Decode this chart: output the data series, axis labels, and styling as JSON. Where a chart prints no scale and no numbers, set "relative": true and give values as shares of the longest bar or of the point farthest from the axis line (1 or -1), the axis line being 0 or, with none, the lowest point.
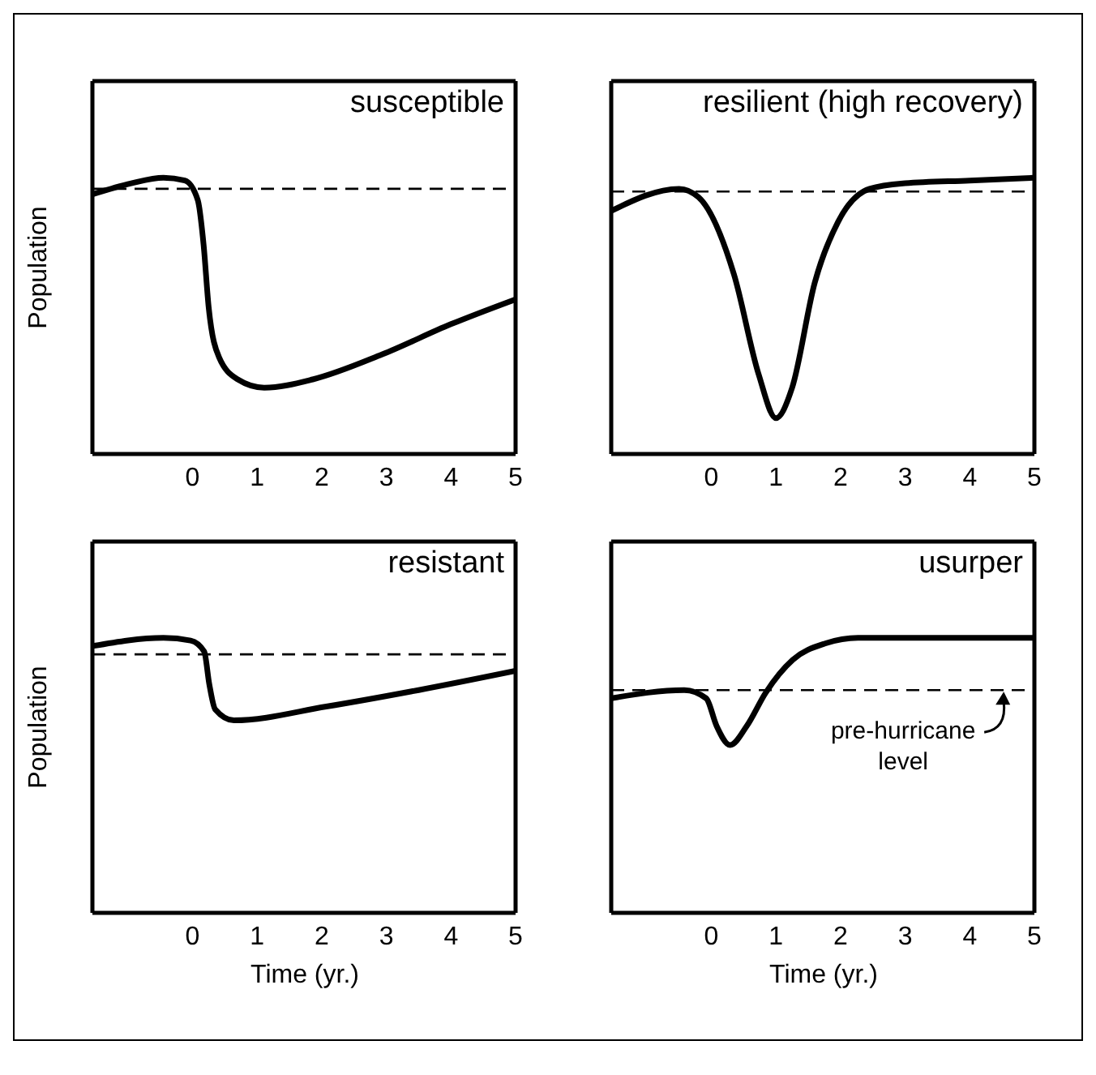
{
  "chart_data": [
    {
      "type": "line",
      "title": "susceptible",
      "ylabel": "Population",
      "relative": true,
      "xlim": [
        -1.55,
        5
      ],
      "xticks": [
        0,
        1,
        2,
        3,
        4,
        5
      ],
      "series": [
        {
          "color": "#000000",
          "x": [
            -1.55,
            -0.95,
            -0.45,
            -0.12,
            0.08,
            0.17,
            0.25,
            0.41,
            0.7,
            1.11,
            1.86,
            2.93,
            4.0,
            5.0
          ],
          "values": [
            0.94,
            0.98,
            1,
            0.99,
            0.92,
            0.76,
            0.53,
            0.35,
            0.27,
            0.24,
            0.27,
            0.36,
            0.47,
            0.56
          ]
        }
      ],
      "ref_lines": [
        {
          "axis": "y",
          "value": 0.96,
          "color": "#000000",
          "line_style": "dashed"
        }
      ]
    },
    {
      "type": "line",
      "title": "resilient (high recovery)",
      "relative": true,
      "xlim": [
        -1.55,
        5
      ],
      "xticks": [
        0,
        1,
        2,
        3,
        4,
        5
      ],
      "series": [
        {
          "color": "#000000",
          "x": [
            -1.55,
            -0.5,
            -0.2,
            0.35,
            0.73,
            1.0,
            1.25,
            1.6,
            1.96,
            2.45,
            3.0,
            4.0,
            5.0
          ],
          "values": [
            0.88,
            0.96,
            0.93,
            0.65,
            0.29,
            0.13,
            0.24,
            0.62,
            0.84,
            0.96,
            0.98,
            0.99,
            1
          ]
        }
      ],
      "ref_lines": [
        {
          "axis": "y",
          "value": 0.95,
          "color": "#000000",
          "line_style": "dashed"
        }
      ]
    },
    {
      "type": "line",
      "title": "resistant",
      "ylabel": "Population",
      "xlabel": "Time (yr.)",
      "relative": true,
      "xlim": [
        -1.55,
        5
      ],
      "xticks": [
        0,
        1,
        2,
        3,
        4,
        5
      ],
      "series": [
        {
          "color": "#000000",
          "x": [
            -1.55,
            -0.45,
            -0.03,
            0.18,
            0.26,
            0.35,
            0.64,
            2.07,
            3.5,
            5.0
          ],
          "values": [
            0.97,
            1,
            0.99,
            0.95,
            0.83,
            0.74,
            0.7,
            0.75,
            0.81,
            0.88
          ]
        }
      ],
      "ref_lines": [
        {
          "axis": "y",
          "value": 0.94,
          "color": "#000000",
          "line_style": "dashed"
        }
      ]
    },
    {
      "type": "line",
      "title": "usurper",
      "xlabel": "Time (yr.)",
      "relative": true,
      "xlim": [
        -1.55,
        5
      ],
      "xticks": [
        0,
        1,
        2,
        3,
        4,
        5
      ],
      "series": [
        {
          "color": "#000000",
          "x": [
            -1.55,
            -0.42,
            -0.08,
            0.08,
            0.29,
            0.55,
            0.84,
            1.26,
            1.77,
            2.27,
            5.0
          ],
          "values": [
            0.78,
            0.81,
            0.78,
            0.68,
            0.61,
            0.68,
            0.8,
            0.92,
            0.98,
            1,
            1
          ]
        }
      ],
      "ref_lines": [
        {
          "axis": "y",
          "value": 0.81,
          "color": "#000000",
          "line_style": "dashed",
          "label": "pre-hurricane level"
        }
      ]
    }
  ]
}
